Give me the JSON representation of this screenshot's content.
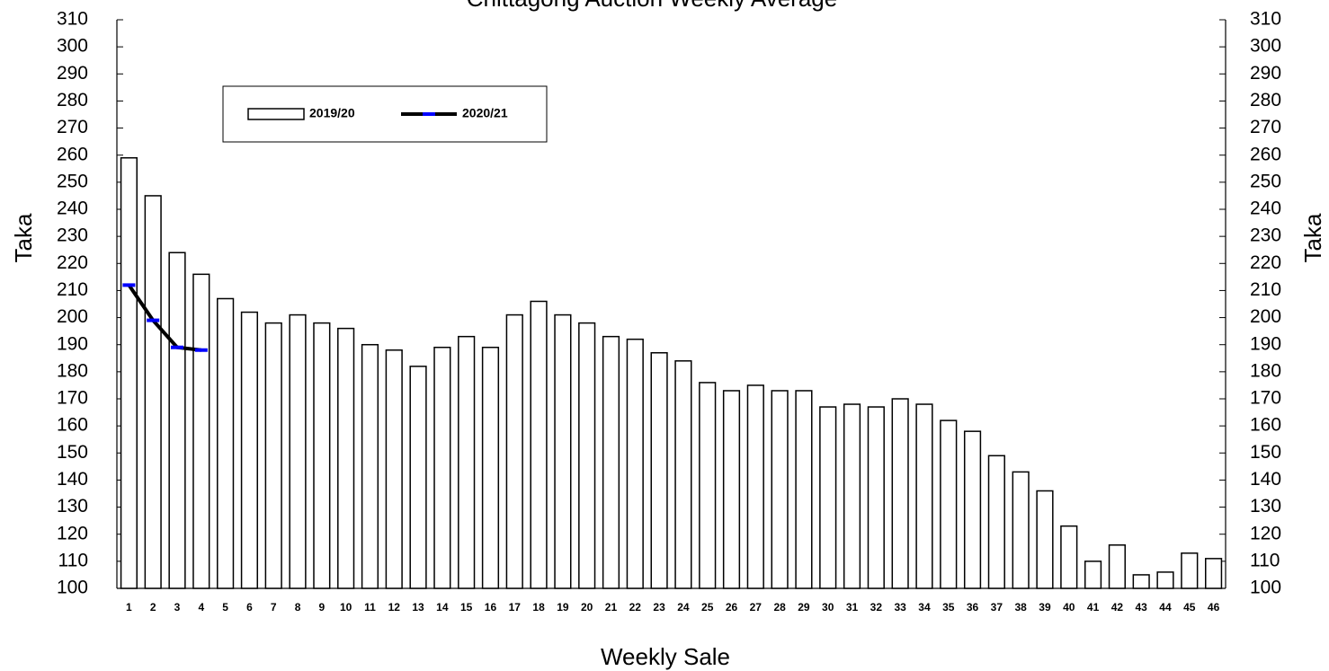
{
  "chart_data": {
    "type": "bar",
    "title": "Chittagong Auction Weekly Average",
    "x_label": "Weekly Sale",
    "y_label": "Taka",
    "y2_label": "Taka",
    "categories": [
      "1",
      "2",
      "3",
      "4",
      "5",
      "6",
      "7",
      "8",
      "9",
      "10",
      "11",
      "12",
      "13",
      "14",
      "15",
      "16",
      "17",
      "18",
      "19",
      "20",
      "21",
      "22",
      "23",
      "24",
      "25",
      "26",
      "27",
      "28",
      "29",
      "30",
      "31",
      "32",
      "33",
      "34",
      "35",
      "36",
      "37",
      "38",
      "39",
      "40",
      "41",
      "42",
      "43",
      "44",
      "45",
      "46"
    ],
    "series": [
      {
        "name": "2019/20",
        "type": "bar",
        "color": "#ffffff",
        "edge_color": "#000000",
        "values": [
          259,
          245,
          224,
          216,
          207,
          202,
          198,
          201,
          198,
          196,
          190,
          188,
          182,
          189,
          193,
          189,
          201,
          206,
          201,
          198,
          193,
          192,
          187,
          184,
          176,
          173,
          175,
          173,
          173,
          167,
          168,
          167,
          170,
          168,
          162,
          158,
          149,
          143,
          136,
          123,
          110,
          116,
          105,
          106,
          113,
          111
        ]
      },
      {
        "name": "2020/21",
        "type": "line",
        "color": "#000000",
        "marker_color": "#0000ff",
        "values": [
          212,
          199,
          189,
          188,
          null,
          null,
          null,
          null,
          null,
          null,
          null,
          null,
          null,
          null,
          null,
          null,
          null,
          null,
          null,
          null,
          null,
          null,
          null,
          null,
          null,
          null,
          null,
          null,
          null,
          null,
          null,
          null,
          null,
          null,
          null,
          null,
          null,
          null,
          null,
          null,
          null,
          null,
          null,
          null,
          null,
          null
        ]
      }
    ],
    "ylim": [
      100,
      310
    ],
    "yticks": [
      100,
      110,
      120,
      130,
      140,
      150,
      160,
      170,
      180,
      190,
      200,
      210,
      220,
      230,
      240,
      250,
      260,
      270,
      280,
      290,
      300,
      310
    ],
    "y2lim": [
      100,
      310
    ],
    "y2ticks": [
      100,
      110,
      120,
      130,
      140,
      150,
      160,
      170,
      180,
      190,
      200,
      210,
      220,
      230,
      240,
      250,
      260,
      270,
      280,
      290,
      300,
      310
    ],
    "grid": false,
    "legend": "upper left"
  }
}
